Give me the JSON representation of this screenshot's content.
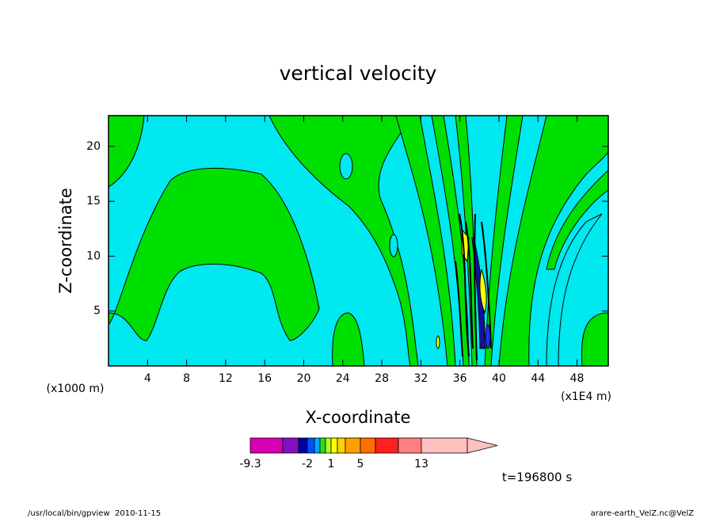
{
  "chart_data": {
    "type": "contour",
    "title": "vertical velocity",
    "x_label": "X-coordinate",
    "y_label": "Z-coordinate",
    "x_unit_left": "(x1000 m)",
    "x_unit_right": "(x1E4 m)",
    "xlim": [
      0,
      51.2
    ],
    "xticks": [
      4,
      8,
      12,
      16,
      20,
      24,
      28,
      32,
      36,
      40,
      44,
      48
    ],
    "ylim": [
      0,
      22.8
    ],
    "yticks": [
      5,
      10,
      15,
      20
    ],
    "colorbar": {
      "levels": [
        -9.3,
        -5,
        -3,
        -2,
        -1,
        -0.5,
        0.5,
        1,
        2,
        3,
        5,
        7,
        10,
        13,
        20
      ],
      "colors": [
        "#d800b0",
        "#8010c0",
        "#0000a8",
        "#0050ff",
        "#00a8ff",
        "#20e020",
        "#b0ff20",
        "#ffff00",
        "#ffd000",
        "#ffa000",
        "#ff7000",
        "#ff2020",
        "#ff8080",
        "#ffc0c0"
      ],
      "ticks": [
        -9.3,
        -2,
        1,
        5,
        13
      ]
    },
    "time_label": "t=196800 s"
  },
  "footer": {
    "left": "/usr/local/bin/gpview  2010-11-15",
    "right": "arare-earth_VelZ.nc@VelZ"
  }
}
